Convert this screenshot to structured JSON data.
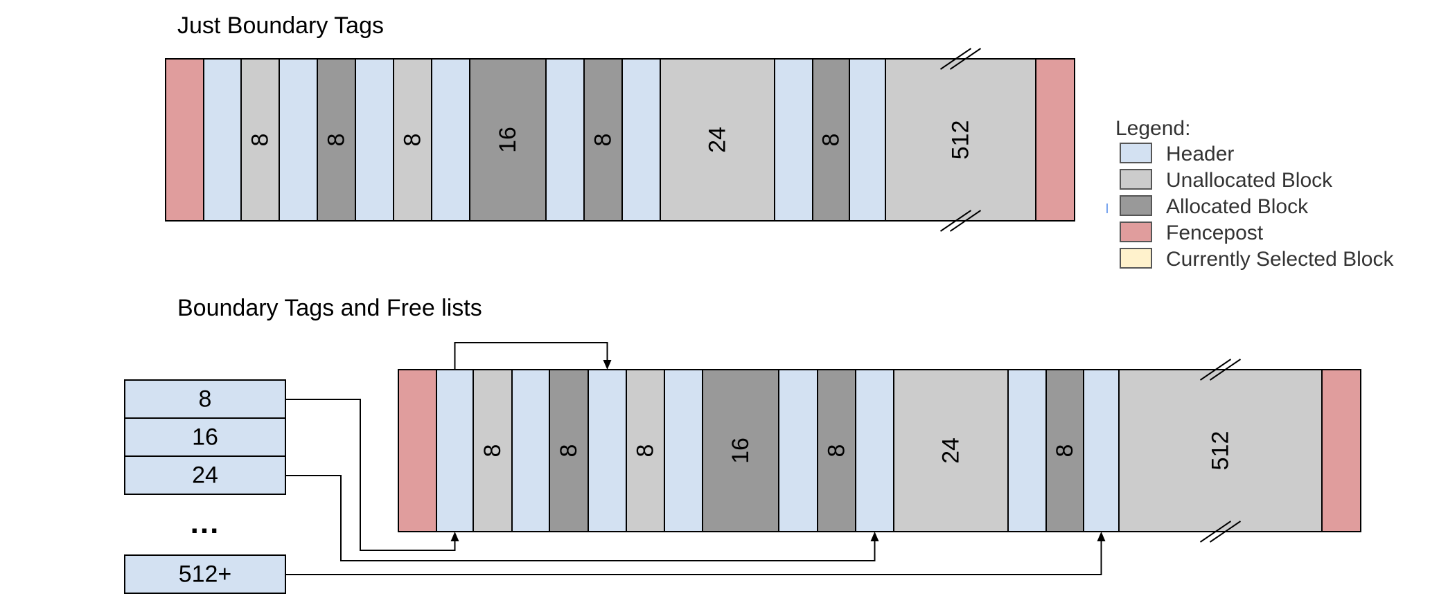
{
  "titles": {
    "top": "Just Boundary Tags",
    "bottom": "Boundary Tags and Free lists"
  },
  "colors": {
    "header": "#d3e1f2",
    "unallocated": "#cccccc",
    "allocated": "#999999",
    "fencepost": "#e09d9d",
    "selected": "#fff2cc",
    "stroke": "#000000"
  },
  "heap": {
    "blocks": [
      {
        "type": "fencepost",
        "label": ""
      },
      {
        "type": "header",
        "label": ""
      },
      {
        "type": "unallocated",
        "label": "8"
      },
      {
        "type": "header",
        "label": ""
      },
      {
        "type": "allocated",
        "label": "8"
      },
      {
        "type": "header",
        "label": ""
      },
      {
        "type": "unallocated",
        "label": "8"
      },
      {
        "type": "header",
        "label": ""
      },
      {
        "type": "allocated",
        "label": "16"
      },
      {
        "type": "header",
        "label": ""
      },
      {
        "type": "allocated",
        "label": "8"
      },
      {
        "type": "header",
        "label": ""
      },
      {
        "type": "unallocated",
        "label": "24"
      },
      {
        "type": "header",
        "label": ""
      },
      {
        "type": "allocated",
        "label": "8"
      },
      {
        "type": "header",
        "label": ""
      },
      {
        "type": "unallocated",
        "label": "512"
      },
      {
        "type": "fencepost",
        "label": ""
      }
    ]
  },
  "legend": {
    "title": "Legend:",
    "items": [
      {
        "label": "Header",
        "color_key": "header"
      },
      {
        "label": "Unallocated Block",
        "color_key": "unallocated"
      },
      {
        "label": "Allocated Block",
        "color_key": "allocated"
      },
      {
        "label": "Fencepost",
        "color_key": "fencepost"
      },
      {
        "label": "Currently Selected Block",
        "color_key": "selected"
      }
    ]
  },
  "freelist": {
    "entries": [
      {
        "label": "8"
      },
      {
        "label": "16"
      },
      {
        "label": "24"
      },
      {
        "label": "512+"
      }
    ],
    "ellipsis": "..."
  }
}
